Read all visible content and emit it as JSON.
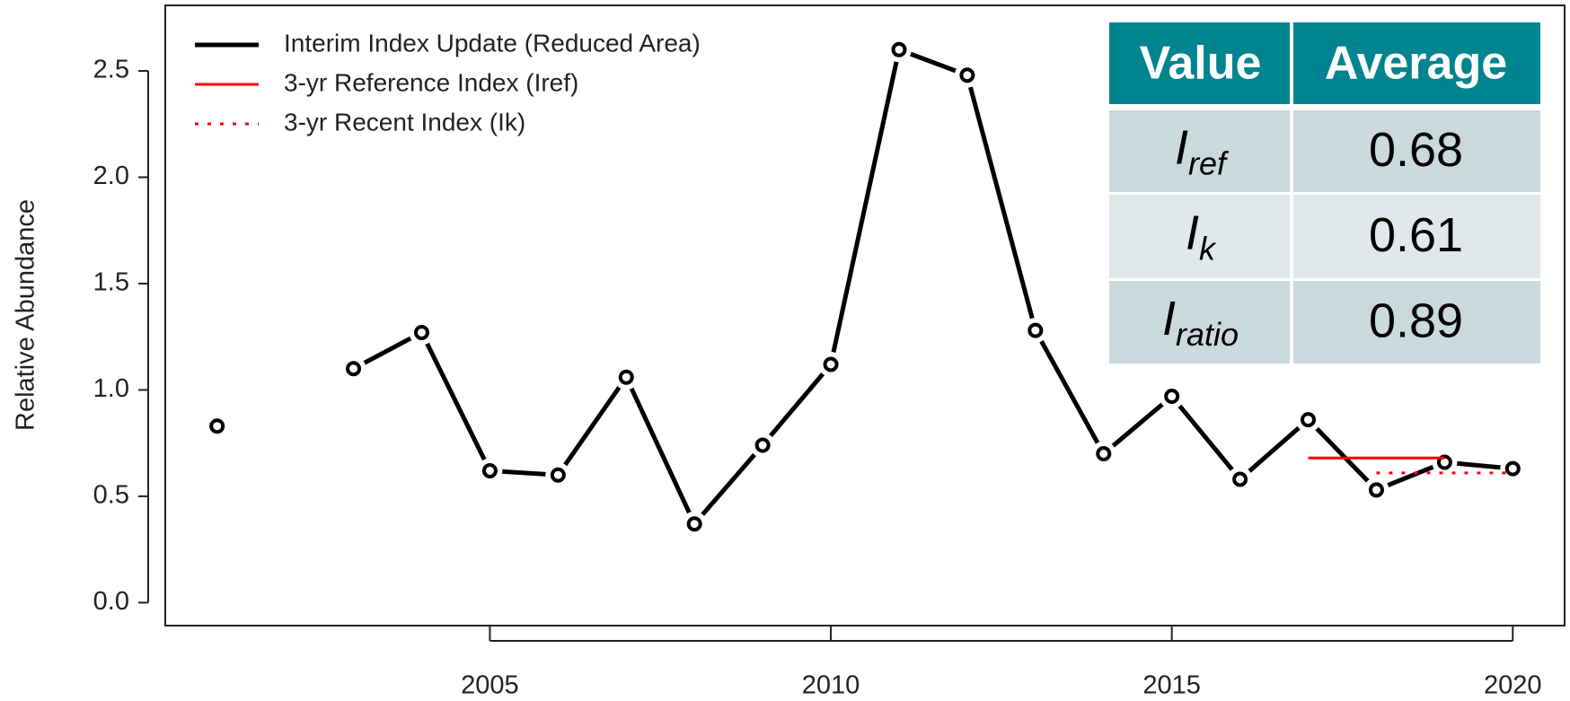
{
  "chart_data": {
    "type": "line",
    "ylabel": "Relative Abundance",
    "x": [
      2001,
      2002,
      2003,
      2004,
      2005,
      2006,
      2007,
      2008,
      2009,
      2010,
      2011,
      2012,
      2013,
      2014,
      2015,
      2016,
      2017,
      2018,
      2019,
      2020
    ],
    "series": [
      {
        "name": "Interim Index Update (Reduced Area)",
        "color": "#000000",
        "style": "solid",
        "markers": true,
        "values": [
          0.83,
          null,
          1.1,
          1.27,
          0.62,
          0.6,
          1.06,
          0.37,
          0.74,
          1.12,
          2.6,
          2.48,
          1.28,
          0.7,
          0.97,
          0.58,
          0.86,
          0.53,
          0.66,
          0.63
        ]
      },
      {
        "name": "3-yr Reference Index (Iref)",
        "color": "#ff0000",
        "style": "solid",
        "x": [
          2017,
          2019
        ],
        "values": [
          0.68,
          0.68
        ]
      },
      {
        "name": "3-yr Recent Index (Ik)",
        "color": "#ff0000",
        "style": "dotted",
        "x": [
          2018,
          2020
        ],
        "values": [
          0.61,
          0.61
        ]
      }
    ],
    "xlim": [
      2000.24,
      2020.76
    ],
    "xticks": [
      2005,
      2010,
      2015,
      2020
    ],
    "ylim": [
      -0.108,
      2.808
    ],
    "yticks": [
      {
        "value": 0,
        "label": "0.0"
      },
      0.5,
      {
        "value": 1,
        "label": "1.0"
      },
      1.5,
      {
        "value": 2,
        "label": "2.0"
      },
      2.5
    ],
    "legend": "top-left"
  },
  "table": {
    "header": [
      "Value",
      "Average"
    ],
    "rows": [
      {
        "symbol": "I",
        "subscript": "ref",
        "value": 0.68
      },
      {
        "symbol": "I",
        "subscript": "k",
        "value": 0.61
      },
      {
        "symbol": "I",
        "subscript": "ratio",
        "value": 0.89
      }
    ]
  }
}
